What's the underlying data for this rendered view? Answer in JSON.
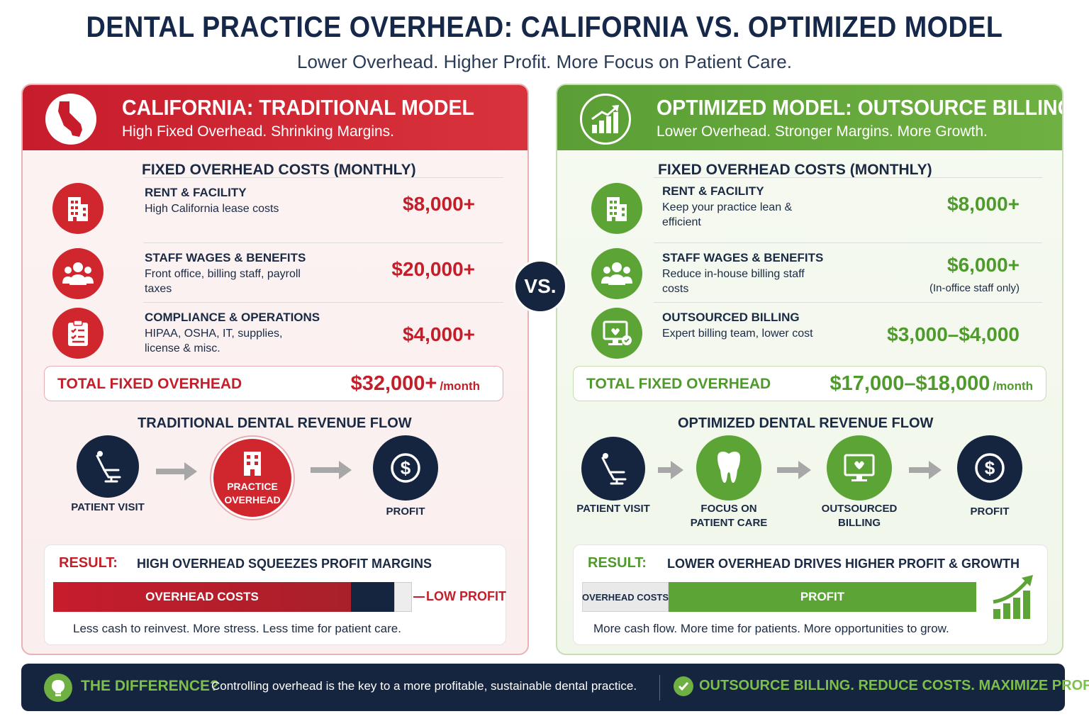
{
  "header": {
    "title": "DENTAL PRACTICE OVERHEAD: CALIFORNIA VS. OPTIMIZED MODEL",
    "subtitle": "Lower Overhead. Higher Profit. More Focus on Patient Care."
  },
  "vs_label": "VS.",
  "left": {
    "title": "CALIFORNIA: TRADITIONAL MODEL",
    "subtitle": "High Fixed Overhead. Shrinking Margins.",
    "icon": "california-map-icon",
    "section_title": "FIXED OVERHEAD COSTS (MONTHLY)",
    "costs": [
      {
        "label": "RENT & FACILITY",
        "desc": "High California lease costs",
        "value": "$8,000+",
        "icon": "building-icon"
      },
      {
        "label": "STAFF WAGES & BENEFITS",
        "desc": "Front office, billing staff, payroll taxes",
        "value": "$20,000+",
        "icon": "people-icon"
      },
      {
        "label": "COMPLIANCE & OPERATIONS",
        "desc": "HIPAA, OSHA, IT, supplies, license & misc.",
        "value": "$4,000+",
        "icon": "clipboard-icon"
      }
    ],
    "total_label": "TOTAL FIXED OVERHEAD",
    "total_value": "$32,000+",
    "total_unit": "/month",
    "flow_title": "TRADITIONAL DENTAL REVENUE FLOW",
    "flow": [
      {
        "label": "PATIENT VISIT",
        "icon": "dental-chair-icon"
      },
      {
        "label": "PRACTICE OVERHEAD",
        "icon": "building-icon"
      },
      {
        "label": "PROFIT",
        "icon": "dollar-icon"
      }
    ],
    "result_label": "RESULT:",
    "result_text": "HIGH OVERHEAD SQUEEZES PROFIT MARGINS",
    "bar": {
      "overhead_label": "OVERHEAD COSTS",
      "profit_label": "LOW PROFIT",
      "overhead_fraction": 0.83,
      "profit_fraction": 0.12
    },
    "result_foot": "Less cash to reinvest. More stress. Less time for patient care.",
    "accent_color": "#d0272f"
  },
  "right": {
    "title": "OPTIMIZED MODEL: OUTSOURCE BILLING",
    "subtitle": "Lower Overhead. Stronger Margins. More Growth.",
    "icon": "growth-chart-icon",
    "section_title": "FIXED OVERHEAD COSTS (MONTHLY)",
    "costs": [
      {
        "label": "RENT & FACILITY",
        "desc": "Keep your practice lean & efficient",
        "value": "$8,000+",
        "note": "",
        "icon": "building-icon"
      },
      {
        "label": "STAFF WAGES & BENEFITS",
        "desc": "Reduce in-house billing staff costs",
        "value": "$6,000+",
        "note": "(In-office staff only)",
        "icon": "people-icon"
      },
      {
        "label": "OUTSOURCED BILLING",
        "desc": "Expert billing team, lower cost",
        "value": "$3,000–$4,000",
        "note": "",
        "icon": "monitor-icon"
      }
    ],
    "total_label": "TOTAL FIXED OVERHEAD",
    "total_value": "$17,000–$18,000",
    "total_unit": "/month",
    "flow_title": "OPTIMIZED DENTAL REVENUE FLOW",
    "flow": [
      {
        "label": "PATIENT VISIT",
        "icon": "dental-chair-icon"
      },
      {
        "label": "FOCUS ON PATIENT CARE",
        "icon": "tooth-icon"
      },
      {
        "label": "OUTSOURCED BILLING",
        "icon": "monitor-heart-icon"
      },
      {
        "label": "PROFIT",
        "icon": "dollar-icon"
      }
    ],
    "result_label": "RESULT:",
    "result_text": "LOWER OVERHEAD DRIVES HIGHER PROFIT & GROWTH",
    "bar": {
      "overhead_label": "OVERHEAD COSTS",
      "profit_label": "PROFIT",
      "overhead_fraction": 0.22,
      "profit_fraction": 0.78
    },
    "result_foot": "More cash flow. More time for patients. More opportunities to grow.",
    "accent_color": "#5da437"
  },
  "footer": {
    "question": "THE DIFFERENCE?",
    "message": "Controlling overhead is the key to a more profitable, sustainable dental practice.",
    "cta": "OUTSOURCE BILLING. REDUCE COSTS. MAXIMIZE PROFIT."
  },
  "colors": {
    "navy": "#15243f",
    "red": "#d0272f",
    "green": "#5da437"
  }
}
